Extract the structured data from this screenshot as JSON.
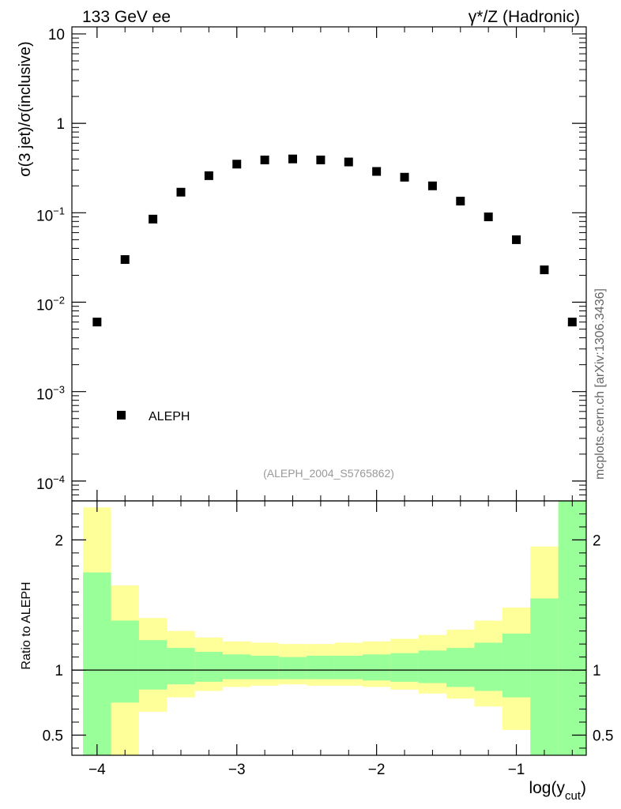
{
  "chart_data": {
    "type": "scatter",
    "header": {
      "top_left": "133 GeV ee",
      "top_right": "γ*/Z (Hadronic)"
    },
    "side_label": "mcplots.cern.ch [arXiv:1306.3436]",
    "analysis_label": "(ALEPH_2004_S5765862)",
    "main": {
      "ylabel": "σ(3 jet)/σ(inclusive)",
      "yscale": "log",
      "ylim": [
        6e-05,
        12
      ],
      "y_ticks": [
        {
          "value": 10,
          "base": "10",
          "exp": ""
        },
        {
          "value": 1,
          "base": "1",
          "exp": ""
        },
        {
          "value": 0.1,
          "base": "10",
          "exp": "−1"
        },
        {
          "value": 0.01,
          "base": "10",
          "exp": "−2"
        },
        {
          "value": 0.001,
          "base": "10",
          "exp": "−3"
        },
        {
          "value": 0.0001,
          "base": "10",
          "exp": "−4"
        }
      ],
      "legend": {
        "label": "ALEPH",
        "position": "bottom-left"
      },
      "series": [
        {
          "name": "ALEPH",
          "x": [
            -4.0,
            -3.8,
            -3.6,
            -3.4,
            -3.2,
            -3.0,
            -2.8,
            -2.6,
            -2.4,
            -2.2,
            -2.0,
            -1.8,
            -1.6,
            -1.4,
            -1.2,
            -1.0,
            -0.8,
            -0.6
          ],
          "y": [
            0.006,
            0.03,
            0.085,
            0.17,
            0.26,
            0.35,
            0.39,
            0.4,
            0.39,
            0.37,
            0.29,
            0.25,
            0.2,
            0.135,
            0.09,
            0.05,
            0.023,
            0.006
          ]
        }
      ]
    },
    "ratio": {
      "ylabel": "Ratio to ALEPH",
      "ylim": [
        0.345,
        2.3
      ],
      "y_ticks": [
        0.5,
        1,
        2
      ],
      "y_tick_labels": [
        "0.5",
        "1",
        "2"
      ],
      "reference_line": 1,
      "bins": [
        {
          "lo": -4.1,
          "hi": -3.9,
          "green_lo": 0.345,
          "green_hi": 1.75,
          "yellow_lo": 0.345,
          "yellow_hi": 2.25
        },
        {
          "lo": -3.9,
          "hi": -3.7,
          "green_lo": 0.75,
          "green_hi": 1.38,
          "yellow_lo": 0.345,
          "yellow_hi": 1.65
        },
        {
          "lo": -3.7,
          "hi": -3.5,
          "green_lo": 0.85,
          "green_hi": 1.23,
          "yellow_lo": 0.68,
          "yellow_hi": 1.4
        },
        {
          "lo": -3.5,
          "hi": -3.3,
          "green_lo": 0.89,
          "green_hi": 1.17,
          "yellow_lo": 0.79,
          "yellow_hi": 1.3
        },
        {
          "lo": -3.3,
          "hi": -3.1,
          "green_lo": 0.91,
          "green_hi": 1.14,
          "yellow_lo": 0.84,
          "yellow_hi": 1.25
        },
        {
          "lo": -3.1,
          "hi": -2.9,
          "green_lo": 0.93,
          "green_hi": 1.12,
          "yellow_lo": 0.87,
          "yellow_hi": 1.22
        },
        {
          "lo": -2.9,
          "hi": -2.7,
          "green_lo": 0.93,
          "green_hi": 1.11,
          "yellow_lo": 0.88,
          "yellow_hi": 1.21
        },
        {
          "lo": -2.7,
          "hi": -2.5,
          "green_lo": 0.93,
          "green_hi": 1.1,
          "yellow_lo": 0.89,
          "yellow_hi": 1.2
        },
        {
          "lo": -2.5,
          "hi": -2.3,
          "green_lo": 0.93,
          "green_hi": 1.11,
          "yellow_lo": 0.88,
          "yellow_hi": 1.2
        },
        {
          "lo": -2.3,
          "hi": -2.1,
          "green_lo": 0.93,
          "green_hi": 1.11,
          "yellow_lo": 0.88,
          "yellow_hi": 1.21
        },
        {
          "lo": -2.1,
          "hi": -1.9,
          "green_lo": 0.92,
          "green_hi": 1.12,
          "yellow_lo": 0.87,
          "yellow_hi": 1.22
        },
        {
          "lo": -1.9,
          "hi": -1.7,
          "green_lo": 0.91,
          "green_hi": 1.13,
          "yellow_lo": 0.85,
          "yellow_hi": 1.24
        },
        {
          "lo": -1.7,
          "hi": -1.5,
          "green_lo": 0.9,
          "green_hi": 1.15,
          "yellow_lo": 0.82,
          "yellow_hi": 1.27
        },
        {
          "lo": -1.5,
          "hi": -1.3,
          "green_lo": 0.87,
          "green_hi": 1.17,
          "yellow_lo": 0.78,
          "yellow_hi": 1.31
        },
        {
          "lo": -1.3,
          "hi": -1.1,
          "green_lo": 0.84,
          "green_hi": 1.21,
          "yellow_lo": 0.72,
          "yellow_hi": 1.38
        },
        {
          "lo": -1.1,
          "hi": -0.9,
          "green_lo": 0.79,
          "green_hi": 1.28,
          "yellow_lo": 0.54,
          "yellow_hi": 1.48
        },
        {
          "lo": -0.9,
          "hi": -0.7,
          "green_lo": 0.345,
          "green_hi": 1.55,
          "yellow_lo": 0.345,
          "yellow_hi": 1.95
        },
        {
          "lo": -0.7,
          "hi": -0.5,
          "green_lo": 0.345,
          "green_hi": 2.3,
          "yellow_lo": 0.345,
          "yellow_hi": 2.3
        }
      ]
    },
    "x_axis": {
      "xlim": [
        -4.18,
        -0.5
      ],
      "label_main": "log(y",
      "label_sub": "cut",
      "label_close": ")",
      "ticks": [
        -4,
        -3,
        -2,
        -1
      ],
      "tick_labels": [
        "−4",
        "−3",
        "−2",
        "−1"
      ]
    },
    "colors": {
      "marker": "#000000",
      "band_green": "#99ff99",
      "band_yellow": "#ffff99",
      "frame": "#000000",
      "analysis_text": "#999999",
      "side_text": "#666666"
    }
  }
}
